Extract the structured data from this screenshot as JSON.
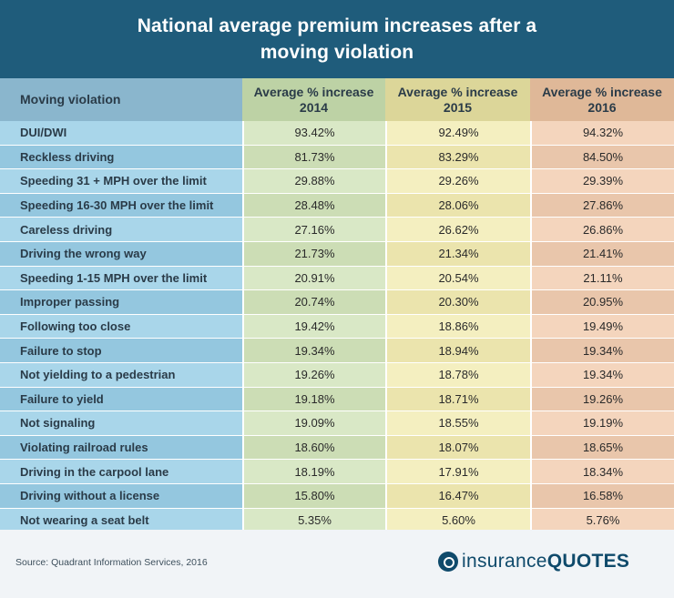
{
  "title": "National average premium increases after a moving violation",
  "chart_data": {
    "type": "table",
    "title": "National average premium increases after a moving violation",
    "columns": [
      "Moving violation",
      "Average % increase 2014",
      "Average % increase 2015",
      "Average % increase 2016"
    ],
    "rows": [
      [
        "DUI/DWI",
        "93.42%",
        "92.49%",
        "94.32%"
      ],
      [
        "Reckless driving",
        "81.73%",
        "83.29%",
        "84.50%"
      ],
      [
        "Speeding 31 + MPH over the limit",
        "29.88%",
        "29.26%",
        "29.39%"
      ],
      [
        "Speeding 16-30 MPH over the limit",
        "28.48%",
        "28.06%",
        "27.86%"
      ],
      [
        "Careless driving",
        "27.16%",
        "26.62%",
        "26.86%"
      ],
      [
        "Driving the wrong way",
        "21.73%",
        "21.34%",
        "21.41%"
      ],
      [
        "Speeding 1-15 MPH over the limit",
        "20.91%",
        "20.54%",
        "21.11%"
      ],
      [
        "Improper passing",
        "20.74%",
        "20.30%",
        "20.95%"
      ],
      [
        "Following too close",
        "19.42%",
        "18.86%",
        "19.49%"
      ],
      [
        "Failure to stop",
        "19.34%",
        "18.94%",
        "19.34%"
      ],
      [
        "Not yielding to a pedestrian",
        "19.26%",
        "18.78%",
        "19.34%"
      ],
      [
        "Failure to yield",
        "19.18%",
        "18.71%",
        "19.26%"
      ],
      [
        "Not signaling",
        "19.09%",
        "18.55%",
        "19.19%"
      ],
      [
        "Violating railroad rules",
        "18.60%",
        "18.07%",
        "18.65%"
      ],
      [
        "Driving in the carpool lane",
        "18.19%",
        "17.91%",
        "18.34%"
      ],
      [
        "Driving without a license",
        "15.80%",
        "16.47%",
        "16.58%"
      ],
      [
        "Not wearing a seat belt",
        "5.35%",
        "5.60%",
        "5.76%"
      ]
    ]
  },
  "footer": {
    "source": "Source: Quadrant Information Services, 2016",
    "brand_part1": "insurance",
    "brand_part2": "QUOTES"
  },
  "colors": {
    "header_bg": "#1f5c7b",
    "col_violation": "#a9d6ea",
    "col_2014": "#d9e8c6",
    "col_2015": "#f4efc0",
    "col_2016": "#f4d5bd",
    "brand": "#0f4a6b"
  },
  "icons": {
    "brand_logo": "insurancequotes-logo-icon"
  }
}
